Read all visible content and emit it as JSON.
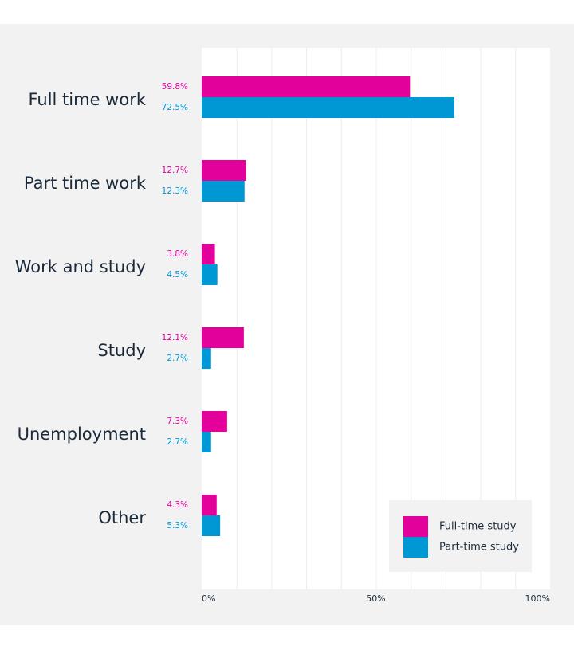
{
  "chart_data": {
    "type": "bar",
    "orientation": "horizontal",
    "categories": [
      "Full time work",
      "Part time work",
      "Work and study",
      "Study",
      "Unemployment",
      "Other"
    ],
    "series": [
      {
        "name": "Full-time study",
        "color": "#e3019b",
        "values": [
          59.8,
          12.7,
          3.8,
          12.1,
          7.3,
          4.3
        ],
        "labels": [
          "59.8%",
          "12.7%",
          "3.8%",
          "12.1%",
          "7.3%",
          "4.3%"
        ]
      },
      {
        "name": "Part-time study",
        "color": "#0098d4",
        "values": [
          72.5,
          12.3,
          4.5,
          2.7,
          2.7,
          5.3
        ],
        "labels": [
          "72.5%",
          "12.3%",
          "4.5%",
          "2.7%",
          "2.7%",
          "5.3%"
        ]
      }
    ],
    "xlim": [
      0,
      100
    ],
    "x_ticks": [
      {
        "value": 0,
        "label": "0%"
      },
      {
        "value": 50,
        "label": "50%"
      },
      {
        "value": 100,
        "label": "100%"
      }
    ],
    "grid": true,
    "legend_position": "bottom-right"
  }
}
